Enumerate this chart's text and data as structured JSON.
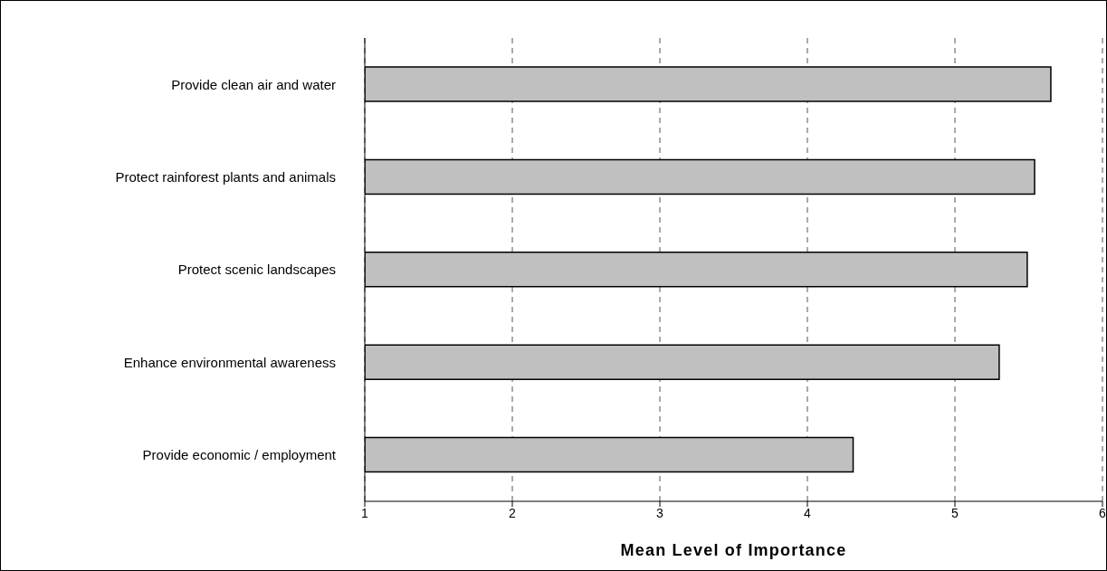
{
  "chart_data": {
    "type": "bar",
    "orientation": "horizontal",
    "categories": [
      "Provide clean air and water",
      "Protect rainforest plants and animals",
      "Protect scenic landscapes",
      "Enhance environmental awareness",
      "Provide economic / employment"
    ],
    "values": [
      5.65,
      5.54,
      5.49,
      5.3,
      4.31
    ],
    "color": "#c0c0c0",
    "xlabel": "Mean Level of Importance",
    "xlim": [
      1,
      6
    ],
    "xticks": [
      1,
      2,
      3,
      4,
      5,
      6
    ],
    "grid": "x"
  }
}
